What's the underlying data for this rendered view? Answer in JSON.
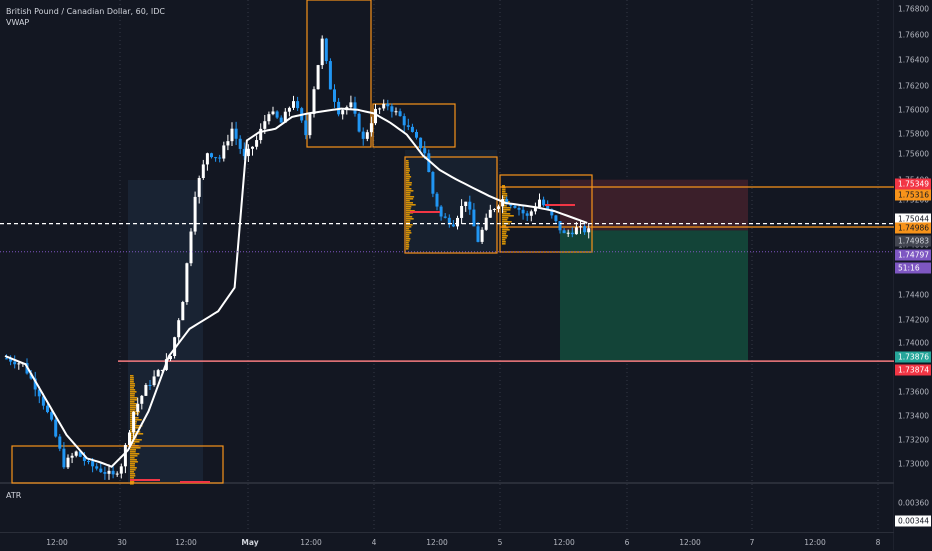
{
  "legend": {
    "symbol": "British Pound / Canadian Dollar, 60, IDC",
    "indicator": "VWAP"
  },
  "sub_indicator": "ATR",
  "price_axis": {
    "ticks": [
      "1.76800",
      "1.76600",
      "1.76400",
      "1.76200",
      "1.76000",
      "1.75800",
      "1.75600",
      "1.75400",
      "1.75200",
      "1.75000",
      "1.74800",
      "1.74600",
      "1.74400",
      "1.74200",
      "1.74000",
      "1.73800",
      "1.73600",
      "1.73400",
      "1.73200",
      "1.73000"
    ],
    "atr_ticks": [
      "0.00360",
      "0.00344"
    ],
    "badges": [
      {
        "label": "1.75349",
        "bg": "#f23645",
        "fg": "#ffffff"
      },
      {
        "label": "1.75316",
        "bg": "#f7931a",
        "fg": "#131722"
      },
      {
        "label": "1.75044",
        "bg": "#ffffff",
        "fg": "#131722"
      },
      {
        "label": "1.74986",
        "bg": "#f7931a",
        "fg": "#131722"
      },
      {
        "label": "1.74983",
        "bg": "#434651",
        "fg": "#d1d4dc"
      },
      {
        "label": "1.74797",
        "bg": "#7e57c2",
        "fg": "#ffffff"
      },
      {
        "label": "51:16",
        "bg": "#7e57c2",
        "fg": "#ffffff"
      },
      {
        "label": "1.73876",
        "bg": "#26a69a",
        "fg": "#ffffff"
      },
      {
        "label": "1.73874",
        "bg": "#f23645",
        "fg": "#ffffff"
      },
      {
        "label": "0.00344",
        "bg": "#ffffff",
        "fg": "#131722"
      }
    ]
  },
  "time_axis": {
    "ticks": [
      {
        "label": "12:00",
        "bold": false
      },
      {
        "label": "30",
        "bold": false
      },
      {
        "label": "12:00",
        "bold": false
      },
      {
        "label": "May",
        "bold": true
      },
      {
        "label": "12:00",
        "bold": false
      },
      {
        "label": "4",
        "bold": false
      },
      {
        "label": "12:00",
        "bold": false
      },
      {
        "label": "5",
        "bold": false
      },
      {
        "label": "12:00",
        "bold": false
      },
      {
        "label": "6",
        "bold": false
      },
      {
        "label": "12:00",
        "bold": false
      },
      {
        "label": "7",
        "bold": false
      },
      {
        "label": "12:00",
        "bold": false
      },
      {
        "label": "8",
        "bold": false
      }
    ]
  },
  "colors": {
    "background": "#131722",
    "candle": "#2196f3",
    "candle_alt": "#ffffff",
    "vwap": "#ffffff",
    "box": "#f7931a",
    "support": "#f77c80",
    "stop_zone": "#f23645",
    "target_zone": "#26a69a",
    "volume_profile": "#f7a600"
  },
  "chart_data": {
    "type": "candlestick",
    "title": "British Pound / Canadian Dollar, 60, IDC",
    "ylim": [
      1.7285,
      1.769
    ],
    "last_price": 1.74983,
    "levels": {
      "dashed_line": 1.75044,
      "support_line": 1.73876,
      "position_entry": 1.74986,
      "position_stop": 1.75349,
      "position_target": 1.73876
    },
    "vwap_anchors": [
      [
        0,
        1.7392
      ],
      [
        5,
        1.7385
      ],
      [
        10,
        1.7355
      ],
      [
        15,
        1.7325
      ],
      [
        20,
        1.7305
      ],
      [
        23,
        1.7302
      ],
      [
        26,
        1.7298
      ],
      [
        30,
        1.7312
      ],
      [
        35,
        1.7345
      ],
      [
        40,
        1.7392
      ],
      [
        45,
        1.7415
      ],
      [
        52,
        1.743
      ],
      [
        56,
        1.745
      ],
      [
        59,
        1.7575
      ],
      [
        62,
        1.7582
      ],
      [
        66,
        1.7585
      ],
      [
        70,
        1.7595
      ],
      [
        74,
        1.7598
      ],
      [
        78,
        1.76
      ],
      [
        82,
        1.7602
      ],
      [
        86,
        1.7601
      ],
      [
        90,
        1.7598
      ],
      [
        94,
        1.759
      ],
      [
        98,
        1.758
      ],
      [
        102,
        1.7562
      ],
      [
        106,
        1.755
      ],
      [
        110,
        1.7542
      ],
      [
        114,
        1.7535
      ],
      [
        118,
        1.7528
      ],
      [
        122,
        1.7522
      ],
      [
        126,
        1.752
      ],
      [
        130,
        1.7518
      ],
      [
        134,
        1.7515
      ],
      [
        138,
        1.751
      ],
      [
        142,
        1.7505
      ]
    ],
    "close_anchors": [
      [
        0,
        1.739
      ],
      [
        4,
        1.7385
      ],
      [
        8,
        1.736
      ],
      [
        11,
        1.7335
      ],
      [
        14,
        1.73
      ],
      [
        17,
        1.731
      ],
      [
        20,
        1.73
      ],
      [
        23,
        1.7295
      ],
      [
        26,
        1.729
      ],
      [
        28,
        1.73
      ],
      [
        31,
        1.7345
      ],
      [
        34,
        1.7365
      ],
      [
        37,
        1.7378
      ],
      [
        40,
        1.7392
      ],
      [
        43,
        1.744
      ],
      [
        46,
        1.753
      ],
      [
        49,
        1.7565
      ],
      [
        52,
        1.756
      ],
      [
        55,
        1.7585
      ],
      [
        58,
        1.756
      ],
      [
        61,
        1.7575
      ],
      [
        64,
        1.76
      ],
      [
        67,
        1.759
      ],
      [
        70,
        1.761
      ],
      [
        73,
        1.758
      ],
      [
        75,
        1.762
      ],
      [
        77,
        1.766
      ],
      [
        79,
        1.762
      ],
      [
        81,
        1.76
      ],
      [
        84,
        1.7605
      ],
      [
        87,
        1.7575
      ],
      [
        90,
        1.76
      ],
      [
        93,
        1.7605
      ],
      [
        96,
        1.7595
      ],
      [
        99,
        1.758
      ],
      [
        102,
        1.7565
      ],
      [
        104,
        1.753
      ],
      [
        106,
        1.751
      ],
      [
        109,
        1.7505
      ],
      [
        112,
        1.7525
      ],
      [
        115,
        1.749
      ],
      [
        118,
        1.7515
      ],
      [
        121,
        1.7525
      ],
      [
        124,
        1.752
      ],
      [
        127,
        1.751
      ],
      [
        130,
        1.7525
      ],
      [
        133,
        1.751
      ],
      [
        136,
        1.7495
      ],
      [
        139,
        1.75
      ],
      [
        142,
        1.7498
      ]
    ]
  }
}
